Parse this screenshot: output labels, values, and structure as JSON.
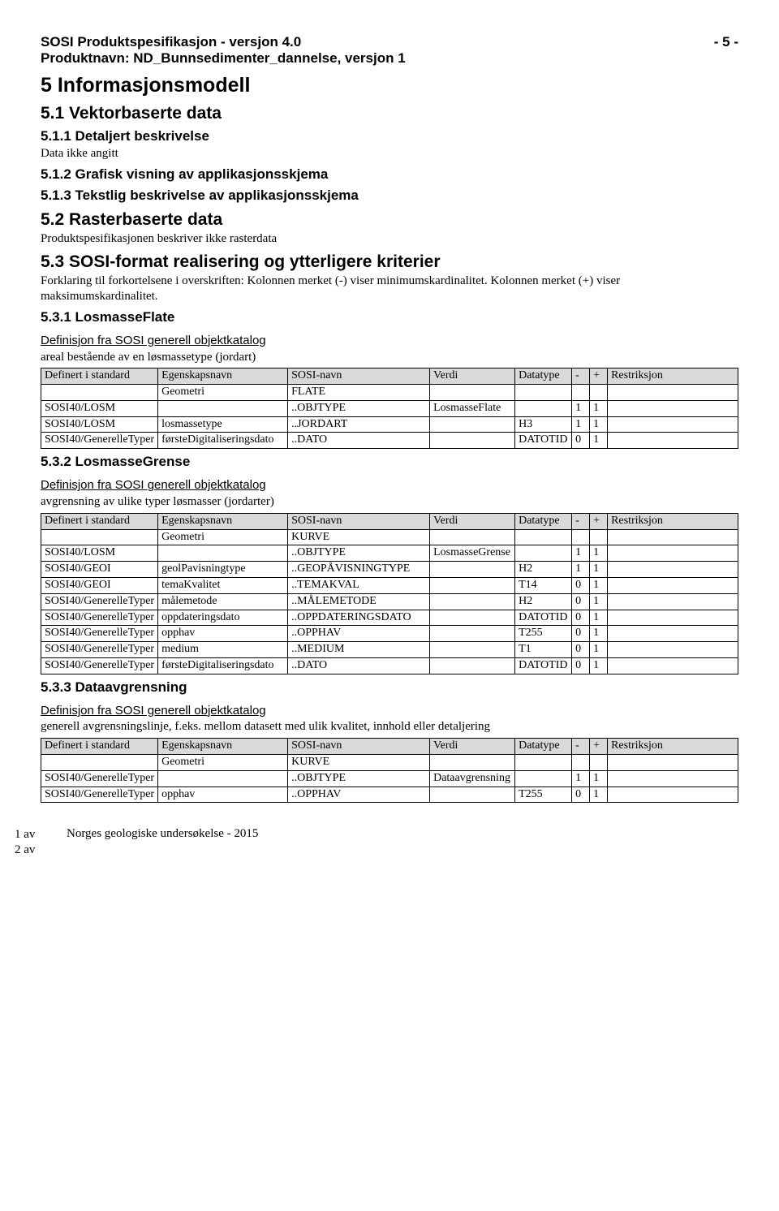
{
  "header": {
    "spec_title": "SOSI Produktspesifikasjon - versjon 4.0",
    "page_num": "- 5 -",
    "product": "Produktnavn: ND_Bunnsedimenter_dannelse, versjon 1"
  },
  "s5": {
    "title": "5 Informasjonsmodell",
    "s51": "5.1  Vektorbaserte data",
    "s511": "5.1.1  Detaljert beskrivelse",
    "s511_body": "Data ikke angitt",
    "s512": "5.1.2  Grafisk visning av applikasjonsskjema",
    "s513": "5.1.3  Tekstlig beskrivelse av applikasjonsskjema",
    "s52": "5.2  Rasterbaserte data",
    "s52_body": "Produktspesifikasjonen beskriver ikke rasterdata",
    "s53": "5.3  SOSI-format realisering og ytterligere kriterier",
    "s53_body": "Forklaring til forkortelsene i overskriften: Kolonnen merket (-) viser minimumskardinalitet. Kolonnen merket (+) viser maksimumskardinalitet.",
    "s531": "5.3.1  LosmasseFlate",
    "s531_def_title": "Definisjon fra SOSI generell objektkatalog",
    "s531_def_body": "areal bestående av en løsmassetype (jordart)",
    "s532": "5.3.2  LosmasseGrense",
    "s532_def_title": "Definisjon fra SOSI generell objektkatalog",
    "s532_def_body": "avgrensning av ulike typer løsmasser (jordarter)",
    "s533": "5.3.3  Dataavgrensning",
    "s533_def_title": "Definisjon fra SOSI generell objektkatalog",
    "s533_def_body": "generell avgrensningslinje, f.eks. mellom datasett med ulik kvalitet, innhold eller detaljering"
  },
  "tbl_headers": {
    "c1": "Definert i standard",
    "c2": "Egenskapsnavn",
    "c3": "SOSI-navn",
    "c4": "Verdi",
    "c5": "Datatype",
    "c6": "-",
    "c7": "+",
    "c8": "Restriksjon"
  },
  "tbl1": [
    [
      "",
      "Geometri",
      "FLATE",
      "",
      "",
      "",
      "",
      ""
    ],
    [
      "SOSI40/LOSM",
      "",
      "..OBJTYPE",
      "LosmasseFlate",
      "",
      "1",
      "1",
      ""
    ],
    [
      "SOSI40/LOSM",
      "losmassetype",
      "..JORDART",
      "",
      "H3",
      "1",
      "1",
      ""
    ],
    [
      "SOSI40/GenerelleTyper",
      "førsteDigitaliseringsdato",
      "..DATO",
      "",
      "DATOTID",
      "0",
      "1",
      ""
    ]
  ],
  "tbl2": [
    [
      "",
      "Geometri",
      "KURVE",
      "",
      "",
      "",
      "",
      ""
    ],
    [
      "SOSI40/LOSM",
      "",
      "..OBJTYPE",
      "LosmasseGrense",
      "",
      "1",
      "1",
      ""
    ],
    [
      "SOSI40/GEOI",
      "geolPavisningtype",
      "..GEOPÅVISNINGTYPE",
      "",
      "H2",
      "1",
      "1",
      ""
    ],
    [
      "SOSI40/GEOI",
      "temaKvalitet",
      "..TEMAKVAL",
      "",
      "T14",
      "0",
      "1",
      ""
    ],
    [
      "SOSI40/GenerelleTyper",
      "målemetode",
      "..MÅLEMETODE",
      "",
      "H2",
      "0",
      "1",
      ""
    ],
    [
      "SOSI40/GenerelleTyper",
      "oppdateringsdato",
      "..OPPDATERINGSDATO",
      "",
      "DATOTID",
      "0",
      "1",
      ""
    ],
    [
      "SOSI40/GenerelleTyper",
      "opphav",
      "..OPPHAV",
      "",
      "T255",
      "0",
      "1",
      ""
    ],
    [
      "SOSI40/GenerelleTyper",
      "medium",
      "..MEDIUM",
      "",
      "T1",
      "0",
      "1",
      ""
    ],
    [
      "SOSI40/GenerelleTyper",
      "førsteDigitaliseringsdato",
      "..DATO",
      "",
      "DATOTID",
      "0",
      "1",
      ""
    ]
  ],
  "tbl3": [
    [
      "",
      "Geometri",
      "KURVE",
      "",
      "",
      "",
      "",
      ""
    ],
    [
      "SOSI40/GenerelleTyper",
      "",
      "..OBJTYPE",
      "Dataavgrensning",
      "",
      "1",
      "1",
      ""
    ],
    [
      "SOSI40/GenerelleTyper",
      "opphav",
      "..OPPHAV",
      "",
      "T255",
      "0",
      "1",
      ""
    ]
  ],
  "footer": {
    "l1": "1 av",
    "l2": "2 av",
    "org": "Norges geologiske undersøkelse - 2015"
  }
}
